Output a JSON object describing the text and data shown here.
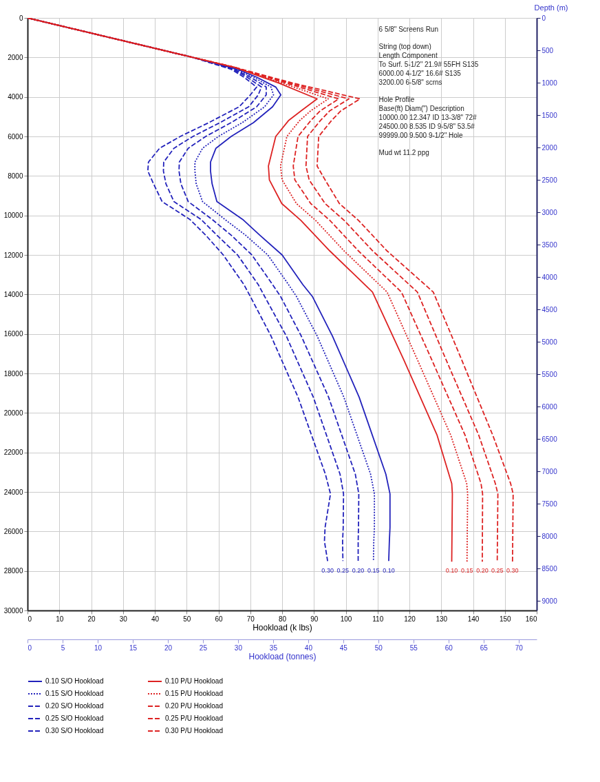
{
  "chart_data": {
    "type": "line",
    "xlabel": "Hookload (k lbs)",
    "x2label": "Hookload (tonnes)",
    "y2label": "Depth (m)",
    "xlim": [
      0,
      160
    ],
    "xticks": [
      0,
      10,
      20,
      30,
      40,
      50,
      60,
      70,
      80,
      90,
      100,
      110,
      120,
      130,
      140,
      150,
      160
    ],
    "ylim": [
      30000,
      0
    ],
    "yticks": [
      0,
      2000,
      4000,
      6000,
      8000,
      10000,
      12000,
      14000,
      16000,
      18000,
      20000,
      22000,
      24000,
      26000,
      28000,
      30000
    ],
    "x2lim": [
      0,
      72.57
    ],
    "x2ticks": [
      0,
      5,
      10,
      15,
      20,
      25,
      30,
      35,
      40,
      45,
      50,
      55,
      60,
      65,
      70
    ],
    "y2lim": [
      9144,
      0
    ],
    "y2ticks": [
      0,
      500,
      1000,
      1500,
      2000,
      2500,
      3000,
      3500,
      4000,
      4500,
      5000,
      5500,
      6000,
      6500,
      7000,
      7500,
      8000,
      8500,
      9000
    ],
    "grid": true,
    "legend": "bottom",
    "series": [
      {
        "name": "0.10 S/O Hookload",
        "color": "#2222bb",
        "line_style": "solid",
        "x": [
          0,
          52,
          66,
          72,
          78,
          79.6,
          77,
          71,
          64,
          59.2,
          57.5,
          57.5,
          58,
          59.5,
          67.6,
          73,
          80,
          86.5,
          89.5,
          95.8,
          104.2,
          112.6,
          113.9,
          113.9,
          113.7,
          113.5
        ],
        "values": [
          0,
          2000,
          2600,
          3000,
          3500,
          3900,
          4500,
          5300,
          6000,
          6600,
          7300,
          7750,
          8400,
          9300,
          10200,
          11000,
          12000,
          13500,
          14100,
          16100,
          19200,
          23100,
          24100,
          25800,
          26500,
          27500
        ]
      },
      {
        "name": "0.15 S/O Hookload",
        "color": "#2222bb",
        "line_style": "dotted",
        "x": [
          0,
          52,
          65.5,
          71,
          76.5,
          77.3,
          74.5,
          67.5,
          60,
          55,
          52.6,
          52.6,
          53,
          55,
          62,
          68.5,
          75.5,
          82,
          84.5,
          91,
          99.4,
          107.8,
          109,
          109,
          108.8,
          108.7
        ],
        "values": [
          0,
          2000,
          2600,
          3000,
          3500,
          3900,
          4500,
          5300,
          6000,
          6600,
          7300,
          7750,
          8400,
          9300,
          10200,
          11000,
          12000,
          13500,
          14100,
          16100,
          19200,
          23100,
          24100,
          25800,
          26500,
          27500
        ]
      },
      {
        "name": "0.20 S/O Hookload",
        "color": "#2222bb",
        "line_style": "dashed",
        "x": [
          0,
          52,
          65,
          70,
          75,
          75,
          72,
          64,
          56,
          50.5,
          47.7,
          47.6,
          48.2,
          50.5,
          58,
          64,
          70.5,
          77,
          79.5,
          86,
          94.6,
          103,
          104.1,
          104,
          103.9,
          103.9
        ],
        "values": [
          0,
          2000,
          2600,
          3000,
          3500,
          3900,
          4500,
          5300,
          6000,
          6600,
          7300,
          7750,
          8400,
          9300,
          10200,
          11000,
          12000,
          13500,
          14100,
          16100,
          19200,
          23100,
          24100,
          25800,
          26500,
          27500
        ]
      },
      {
        "name": "0.25 S/O Hookload",
        "color": "#2222bb",
        "line_style": "dashed",
        "x": [
          0,
          52,
          64.5,
          69,
          73.5,
          72.5,
          69.5,
          60.5,
          52,
          46,
          42.8,
          42.7,
          43.5,
          46,
          54.5,
          59.5,
          66,
          72.5,
          74.5,
          81.3,
          89.8,
          98.2,
          99.3,
          99.2,
          99,
          99.1
        ],
        "values": [
          0,
          2000,
          2600,
          3000,
          3500,
          3900,
          4500,
          5300,
          6000,
          6600,
          7300,
          7750,
          8400,
          9300,
          10200,
          11000,
          12000,
          13500,
          14100,
          16100,
          19200,
          23100,
          24100,
          25800,
          26500,
          27500
        ]
      },
      {
        "name": "0.30 S/O Hookload",
        "color": "#2222bb",
        "line_style": "dashed",
        "x": [
          0,
          52,
          64,
          68,
          72,
          70,
          66.5,
          57,
          48,
          41.5,
          38,
          37.8,
          39.6,
          42.3,
          51,
          56,
          61.5,
          68,
          70,
          76.5,
          85,
          93.6,
          95.2,
          93.5,
          93.3,
          94.3
        ],
        "values": [
          0,
          2000,
          2600,
          3000,
          3500,
          3900,
          4500,
          5300,
          6000,
          6600,
          7300,
          7750,
          8400,
          9300,
          10200,
          11000,
          12000,
          13500,
          14100,
          16100,
          19200,
          23100,
          24100,
          25800,
          26500,
          27500
        ]
      },
      {
        "name": "0.10 P/U Hookload",
        "color": "#dd2222",
        "line_style": "solid",
        "x": [
          0,
          52,
          65,
          79,
          91,
          86,
          82,
          78,
          75.7,
          76,
          79.9,
          85.9,
          95,
          108.4,
          118.2,
          128.7,
          133.3,
          133.5,
          133.3
        ],
        "values": [
          0,
          2000,
          2500,
          3300,
          4100,
          4700,
          5200,
          6000,
          7500,
          8200,
          9400,
          10250,
          11800,
          13880,
          17300,
          21130,
          23570,
          24100,
          27530
        ]
      },
      {
        "name": "0.15 P/U Hookload",
        "color": "#dd2222",
        "line_style": "dotted",
        "x": [
          0,
          52,
          65,
          80,
          94.5,
          89,
          85.5,
          81.5,
          79.5,
          80,
          84.5,
          90.5,
          99.5,
          113,
          122.5,
          133,
          138,
          138.3,
          138.1
        ],
        "values": [
          0,
          2000,
          2500,
          3300,
          4100,
          4700,
          5200,
          6000,
          7500,
          8200,
          9400,
          10250,
          11800,
          13880,
          17300,
          21130,
          23570,
          24100,
          27530
        ]
      },
      {
        "name": "0.20 P/U Hookload",
        "color": "#dd2222",
        "line_style": "dashed",
        "x": [
          0,
          52,
          65,
          81.2,
          97.8,
          92,
          89,
          85,
          83.5,
          84,
          89,
          95,
          104,
          117.5,
          127,
          137.5,
          142.5,
          143,
          142.9
        ],
        "values": [
          0,
          2000,
          2500,
          3300,
          4100,
          4700,
          5200,
          6000,
          7500,
          8200,
          9400,
          10250,
          11800,
          13880,
          17300,
          21130,
          23570,
          24100,
          27530
        ]
      },
      {
        "name": "0.25 P/U Hookload",
        "color": "#dd2222",
        "line_style": "dashed",
        "x": [
          0,
          52,
          65,
          82.3,
          101,
          95,
          92,
          88,
          87.5,
          88.5,
          93.5,
          99.5,
          108.5,
          122.5,
          131.5,
          141.8,
          147,
          147.8,
          147.6
        ],
        "values": [
          0,
          2000,
          2500,
          3300,
          4100,
          4700,
          5200,
          6000,
          7500,
          8200,
          9400,
          10250,
          11800,
          13880,
          17300,
          21130,
          23570,
          24100,
          27530
        ]
      },
      {
        "name": "0.30 P/U Hookload",
        "color": "#dd2222",
        "line_style": "dashed",
        "x": [
          0,
          52,
          65,
          83.4,
          104.5,
          98.5,
          95.5,
          91.5,
          91,
          93.5,
          98,
          104,
          113,
          127.5,
          136.4,
          146.2,
          151.8,
          152.6,
          152.4
        ],
        "values": [
          0,
          2000,
          2500,
          3300,
          4100,
          4700,
          5200,
          6000,
          7500,
          8200,
          9400,
          10250,
          11800,
          13880,
          17300,
          21130,
          23570,
          24100,
          27530
        ]
      }
    ],
    "annotations": [
      "6 5/8\" Screens Run",
      "String (top down)\n Length  Component\n To Surf.  5-1/2\" 21.9# 55FH S135\n 6000.00 4-1/2\" 16.6# S135\n 3200.00 6-5/8\" scrns",
      "Hole Profile\n  Base(ft) Diam(\")  Description\n10000.00    12.347  ID 13-3/8\" 72#\n24500.00      8.535  ID 9-5/8\" 53.5#\n99999.00      9.500  9-1/2\" Hole",
      "Mud wt   11.2 ppg",
      "0.30",
      "0.25",
      "0.20",
      "0.15",
      "0.10",
      "0.10",
      "0.15",
      "0.20",
      "0.25",
      "0.30"
    ]
  }
}
